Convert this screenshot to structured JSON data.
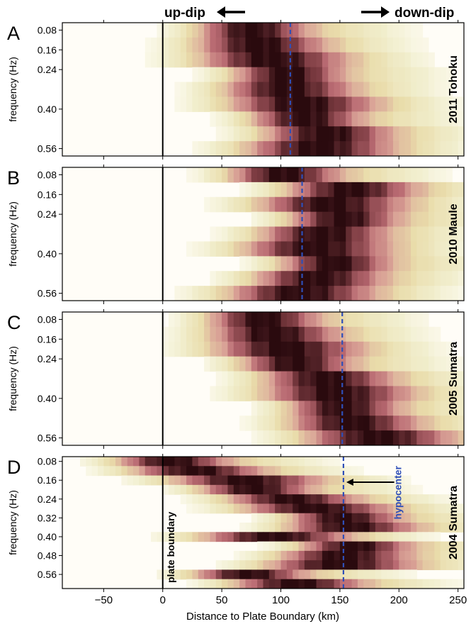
{
  "figure": {
    "top_labels": {
      "updip": "up-dip",
      "downdip": "down-dip"
    },
    "annotations": {
      "plate_boundary": "plate boundary",
      "hypocenter": "hypocenter"
    },
    "colors": {
      "boundary_line": "#000000",
      "hypocenter_line": "#2f4fb8",
      "cmap": [
        "#fffdf7",
        "#f1eecd",
        "#e9dcaa",
        "#d9a296",
        "#b96a72",
        "#7a3a40",
        "#2a0a0e"
      ]
    }
  },
  "chart_data": [
    {
      "type": "heatmap",
      "panel": "A",
      "event": "2011 Tohoku",
      "ylabel": "frequency (Hz)",
      "xlabel": "",
      "xlim": [
        -85,
        255
      ],
      "xticks": [
        -50,
        0,
        50,
        100,
        150,
        200,
        250
      ],
      "xtick_labels_shown": false,
      "y_ticks": [
        "0.08",
        "0.16",
        "0.24",
        "0.40",
        "0.56"
      ],
      "plate_boundary_km": 0,
      "hypocenter_km": 108,
      "rows": [
        {
          "frequency": 0.08,
          "peak_km": 73
        },
        {
          "frequency": 0.12,
          "peak_km": 78
        },
        {
          "frequency": 0.16,
          "peak_km": 88
        },
        {
          "frequency": 0.2,
          "peak_km": 103
        },
        {
          "frequency": 0.24,
          "peak_km": 102
        },
        {
          "frequency": 0.32,
          "peak_km": 113
        },
        {
          "frequency": 0.4,
          "peak_km": 118
        },
        {
          "frequency": 0.48,
          "peak_km": 135
        },
        {
          "frequency": 0.56,
          "peak_km": 127
        }
      ]
    },
    {
      "type": "heatmap",
      "panel": "B",
      "event": "2010 Maule",
      "ylabel": "frequency (Hz)",
      "xlabel": "",
      "xlim": [
        -85,
        255
      ],
      "xticks": [
        -50,
        0,
        50,
        100,
        150,
        200,
        250
      ],
      "xtick_labels_shown": false,
      "y_ticks": [
        "0.08",
        "0.16",
        "0.24",
        "0.40",
        "0.56"
      ],
      "plate_boundary_km": 0,
      "hypocenter_km": 118,
      "rows": [
        {
          "frequency": 0.08,
          "peak_km": 100
        },
        {
          "frequency": 0.12,
          "peak_km": 155
        },
        {
          "frequency": 0.16,
          "peak_km": 138
        },
        {
          "frequency": 0.2,
          "peak_km": 150
        },
        {
          "frequency": 0.24,
          "peak_km": 132
        },
        {
          "frequency": 0.32,
          "peak_km": 125
        },
        {
          "frequency": 0.4,
          "peak_km": 143
        },
        {
          "frequency": 0.48,
          "peak_km": 128
        },
        {
          "frequency": 0.56,
          "peak_km": 112
        }
      ]
    },
    {
      "type": "heatmap",
      "panel": "C",
      "event": "2005 Sumatra",
      "ylabel": "frequency (Hz)",
      "xlabel": "",
      "xlim": [
        -85,
        255
      ],
      "xticks": [
        -50,
        0,
        50,
        100,
        150,
        200,
        250
      ],
      "xtick_labels_shown": false,
      "y_ticks": [
        "0.08",
        "0.16",
        "0.24",
        "0.40",
        "0.56"
      ],
      "plate_boundary_km": 0,
      "hypocenter_km": 152,
      "rows": [
        {
          "frequency": 0.08,
          "peak_km": 82
        },
        {
          "frequency": 0.12,
          "peak_km": 90
        },
        {
          "frequency": 0.16,
          "peak_km": 100
        },
        {
          "frequency": 0.2,
          "peak_km": 110
        },
        {
          "frequency": 0.24,
          "peak_km": 135
        },
        {
          "frequency": 0.32,
          "peak_km": 142
        },
        {
          "frequency": 0.4,
          "peak_km": 150
        },
        {
          "frequency": 0.48,
          "peak_km": 157
        },
        {
          "frequency": 0.56,
          "peak_km": 177
        }
      ]
    },
    {
      "type": "heatmap",
      "panel": "D",
      "event": "2004 Sumatra",
      "ylabel": "frequency (Hz)",
      "xlabel": "Distance to Plate Boundary (km)",
      "xlim": [
        -85,
        255
      ],
      "xticks": [
        -50,
        0,
        50,
        100,
        150,
        200,
        250
      ],
      "xtick_labels_shown": true,
      "y_ticks": [
        "0.08",
        "0.16",
        "0.24",
        "0.32",
        "0.40",
        "0.48",
        "0.56"
      ],
      "plate_boundary_km": 0,
      "hypocenter_km": 153,
      "rows": [
        {
          "frequency": 0.08,
          "peak_km": 5
        },
        {
          "frequency": 0.12,
          "peak_km": 25
        },
        {
          "frequency": 0.16,
          "peak_km": 65
        },
        {
          "frequency": 0.2,
          "peak_km": 75
        },
        {
          "frequency": 0.24,
          "peak_km": 105
        },
        {
          "frequency": 0.28,
          "peak_km": 125
        },
        {
          "frequency": 0.32,
          "peak_km": 150
        },
        {
          "frequency": 0.36,
          "peak_km": 155
        },
        {
          "frequency": 0.4,
          "peak_km": 90
        },
        {
          "frequency": 0.44,
          "peak_km": 160
        },
        {
          "frequency": 0.48,
          "peak_km": 150
        },
        {
          "frequency": 0.52,
          "peak_km": 145
        },
        {
          "frequency": 0.56,
          "peak_km": 70
        },
        {
          "frequency": 0.6,
          "peak_km": 110
        }
      ]
    }
  ]
}
